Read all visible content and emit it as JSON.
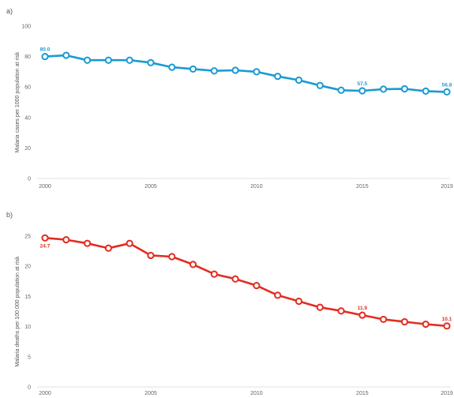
{
  "colors": {
    "panel_a": "#1a9bd2",
    "panel_b": "#e32d21"
  },
  "chart_data": [
    {
      "type": "line",
      "panel_label": "a)",
      "ylabel": "Malaria cases per 1000 population at risk",
      "x": [
        2000,
        2001,
        2002,
        2003,
        2004,
        2005,
        2006,
        2007,
        2008,
        2009,
        2010,
        2011,
        2012,
        2013,
        2014,
        2015,
        2016,
        2017,
        2018,
        2019
      ],
      "values": [
        80.0,
        80.8,
        77.6,
        77.6,
        77.6,
        76.0,
        73.0,
        71.8,
        70.6,
        71.0,
        70.0,
        67.0,
        64.5,
        61.0,
        57.9,
        57.5,
        58.6,
        58.8,
        57.3,
        56.8
      ],
      "ylim": [
        0,
        100
      ],
      "yticks": [
        0,
        20,
        40,
        60,
        80,
        100
      ],
      "xticks": [
        2000,
        2005,
        2010,
        2015,
        2019
      ],
      "data_labels": [
        {
          "x": 2000,
          "text": "80.0",
          "pos": "above"
        },
        {
          "x": 2015,
          "text": "57.5",
          "pos": "above"
        },
        {
          "x": 2019,
          "text": "56.8",
          "pos": "above"
        }
      ]
    },
    {
      "type": "line",
      "panel_label": "b)",
      "ylabel": "Malaria deaths per 100 000 population at risk",
      "x": [
        2000,
        2001,
        2002,
        2003,
        2004,
        2005,
        2006,
        2007,
        2008,
        2009,
        2010,
        2011,
        2012,
        2013,
        2014,
        2015,
        2016,
        2017,
        2018,
        2019
      ],
      "values": [
        24.7,
        24.4,
        23.8,
        23.0,
        23.8,
        21.8,
        21.6,
        20.3,
        18.7,
        17.9,
        16.8,
        15.2,
        14.2,
        13.2,
        12.6,
        11.9,
        11.2,
        10.8,
        10.4,
        10.1
      ],
      "ylim": [
        0,
        25
      ],
      "yticks": [
        0,
        5,
        10,
        15,
        20,
        25
      ],
      "xticks": [
        2000,
        2005,
        2010,
        2015,
        2019
      ],
      "data_labels": [
        {
          "x": 2000,
          "text": "24.7",
          "pos": "below"
        },
        {
          "x": 2015,
          "text": "11.9",
          "pos": "above"
        },
        {
          "x": 2019,
          "text": "10.1",
          "pos": "above"
        }
      ]
    }
  ]
}
